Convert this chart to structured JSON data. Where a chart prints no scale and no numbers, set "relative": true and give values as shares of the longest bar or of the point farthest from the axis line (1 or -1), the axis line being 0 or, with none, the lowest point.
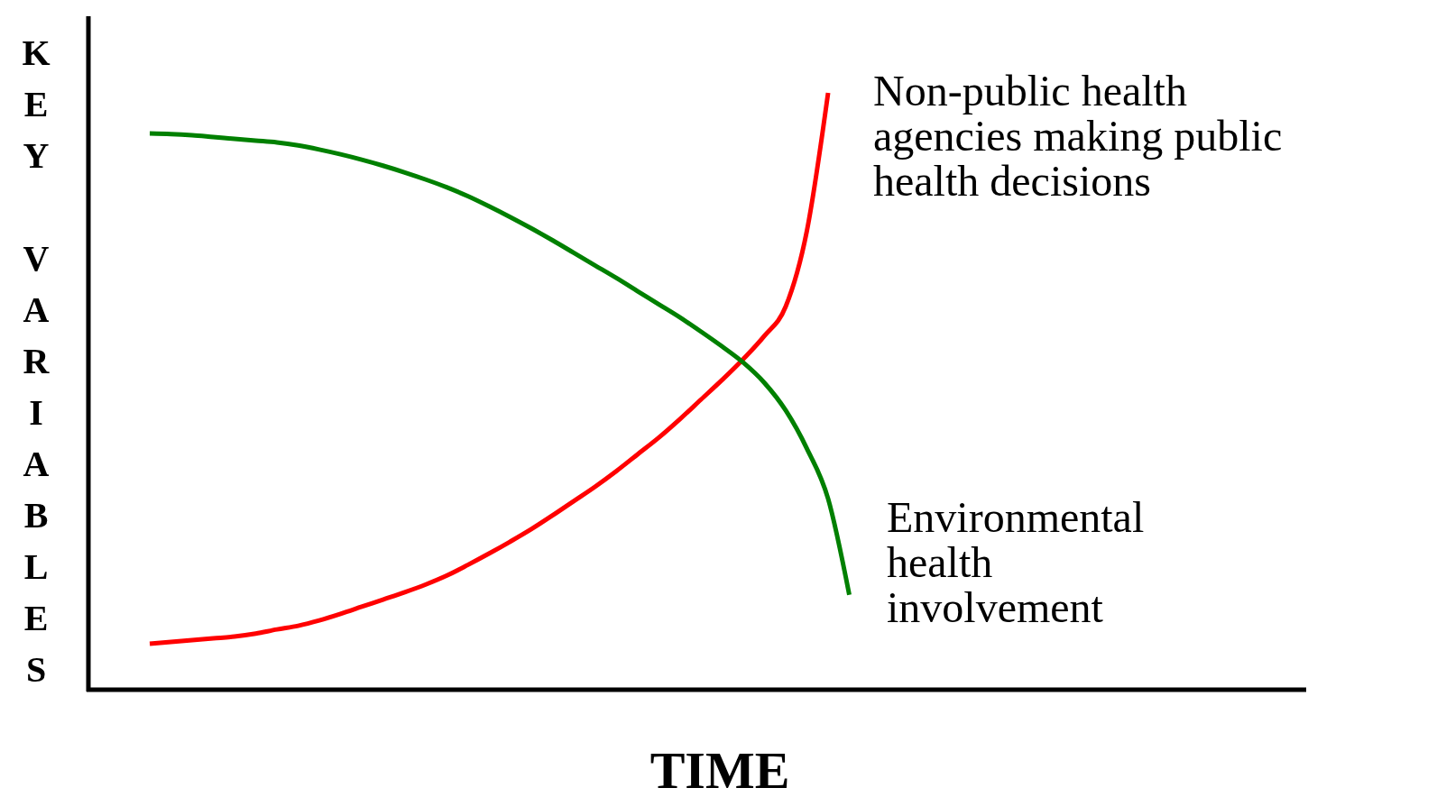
{
  "chart_data": {
    "type": "line",
    "relative": true,
    "xlabel": "TIME",
    "ylabel": "KEY VARIABLES",
    "line_style": "solid",
    "categories": [
      null,
      null,
      null,
      null,
      null,
      null,
      null,
      null,
      null,
      null,
      null,
      null,
      null,
      null,
      null,
      null,
      null,
      null,
      null,
      null,
      null,
      null,
      null,
      null,
      null,
      null,
      null,
      null,
      null,
      null,
      null,
      null,
      null,
      null
    ],
    "series": [
      {
        "name": "Non-public health agencies making public health decisions",
        "color": "#ff0000",
        "values": [
          0.077,
          0.08,
          0.083,
          0.086,
          0.089,
          0.094,
          0.101,
          0.107,
          0.116,
          0.127,
          0.139,
          0.151,
          0.163,
          0.176,
          0.191,
          0.209,
          0.228,
          0.248,
          0.269,
          0.292,
          0.316,
          0.34,
          0.366,
          0.394,
          0.422,
          0.453,
          0.486,
          0.519,
          0.554,
          0.593,
          0.642,
          0.769,
          1,
          null
        ]
      },
      {
        "name": "Environmental health involvement",
        "color": "#008000",
        "values": [
          0.932,
          0.931,
          0.929,
          0.926,
          0.923,
          0.92,
          0.917,
          0.912,
          0.905,
          0.897,
          0.888,
          0.878,
          0.867,
          0.855,
          0.842,
          0.827,
          0.81,
          0.792,
          0.773,
          0.753,
          0.732,
          0.711,
          0.69,
          0.668,
          0.646,
          0.624,
          0.6,
          0.575,
          0.548,
          0.514,
          0.468,
          0.404,
          0.32,
          0.159
        ]
      }
    ]
  }
}
